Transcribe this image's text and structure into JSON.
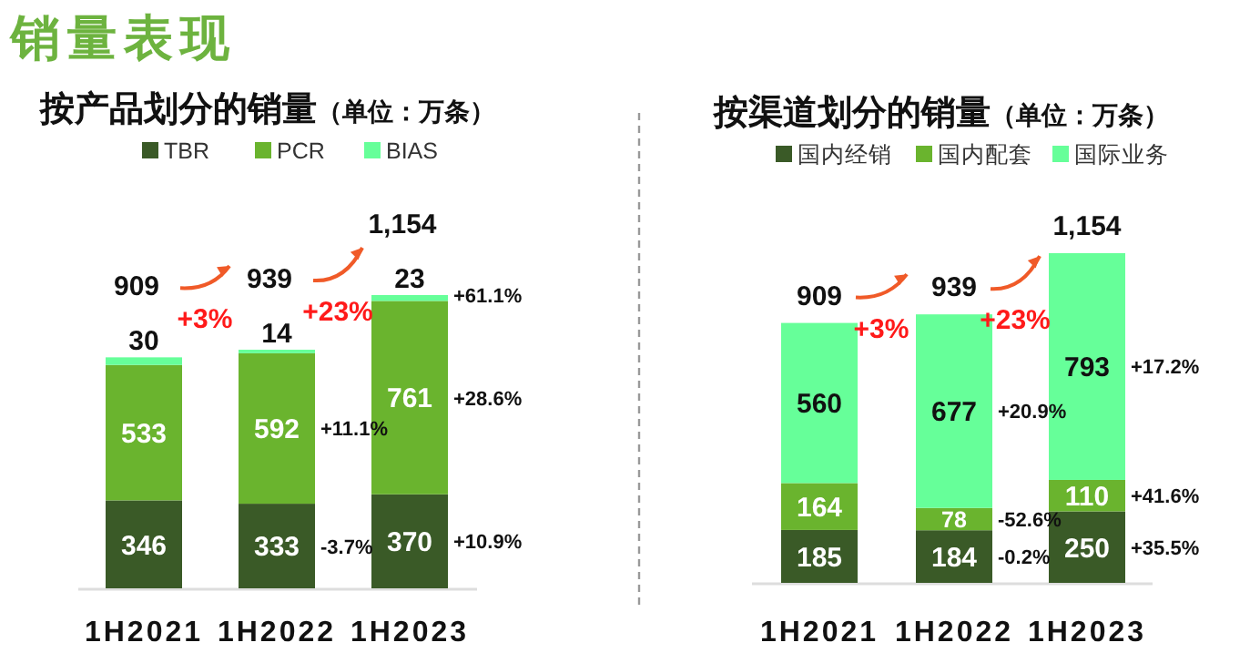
{
  "chart_data": [
    {
      "type": "bar",
      "stacked": true,
      "data_labels": true,
      "legend": "top",
      "title": "销量表现",
      "subtitle": "按产品划分的销量（单位：万条）",
      "categories": [
        "1H2021",
        "1H2022",
        "1H2023"
      ],
      "series": [
        {
          "name": "TBR",
          "color": "#3a5a27",
          "values": [
            346,
            333,
            370
          ]
        },
        {
          "name": "PCR",
          "color": "#6ab42e",
          "values": [
            533,
            592,
            761
          ]
        },
        {
          "name": "BIAS",
          "color": "#66ff99",
          "values": [
            30,
            14,
            23
          ]
        }
      ],
      "totals": [
        "909",
        "939",
        "1,154"
      ],
      "annotations": [
        "+3%",
        "+23%",
        "+11.1%",
        "-3.7%",
        "+61.1%",
        "+28.6%",
        "+10.9%"
      ]
    },
    {
      "type": "bar",
      "stacked": true,
      "data_labels": true,
      "legend": "top",
      "title": "按渠道划分的销量（单位：万条）",
      "categories": [
        "1H2021",
        "1H2022",
        "1H2023"
      ],
      "series": [
        {
          "name": "国内经销",
          "color": "#3a5a27",
          "values": [
            185,
            184,
            250
          ]
        },
        {
          "name": "国内配套",
          "color": "#6ab42e",
          "values": [
            164,
            78,
            110
          ]
        },
        {
          "name": "国际业务",
          "color": "#66ff99",
          "values": [
            560,
            677,
            793
          ]
        }
      ],
      "totals": [
        "909",
        "939",
        "1,154"
      ],
      "annotations": [
        "+3%",
        "+23%",
        "+20.9%",
        "-52.6%",
        "-0.2%",
        "+17.2%",
        "+41.6%",
        "+35.5%"
      ]
    }
  ]
}
